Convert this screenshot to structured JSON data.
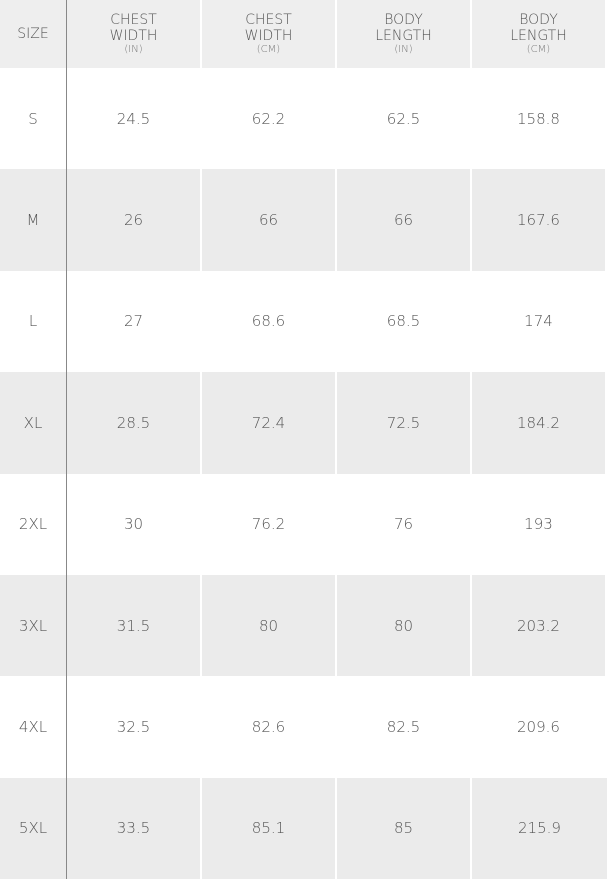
{
  "table": {
    "size_header": "SIZE",
    "headers": [
      {
        "title": [
          "CHEST",
          "WIDTH"
        ],
        "unit": "(IN)"
      },
      {
        "title": [
          "CHEST",
          "WIDTH"
        ],
        "unit": "(CM)"
      },
      {
        "title": [
          "BODY",
          "LENGTH"
        ],
        "unit": "(IN)"
      },
      {
        "title": [
          "BODY",
          "LENGTH"
        ],
        "unit": "(CM)"
      }
    ],
    "rows": [
      [
        "S",
        "24.5",
        "62.2",
        "62.5",
        "158.8"
      ],
      [
        "M",
        "26",
        "66",
        "66",
        "167.6"
      ],
      [
        "L",
        "27",
        "68.6",
        "68.5",
        "174"
      ],
      [
        "XL",
        "28.5",
        "72.4",
        "72.5",
        "184.2"
      ],
      [
        "2XL",
        "30",
        "76.2",
        "76",
        "193"
      ],
      [
        "3XL",
        "31.5",
        "80",
        "80",
        "203.2"
      ],
      [
        "4XL",
        "32.5",
        "82.6",
        "82.5",
        "209.6"
      ],
      [
        "5XL",
        "33.5",
        "85.1",
        "85",
        "215.9"
      ]
    ]
  }
}
